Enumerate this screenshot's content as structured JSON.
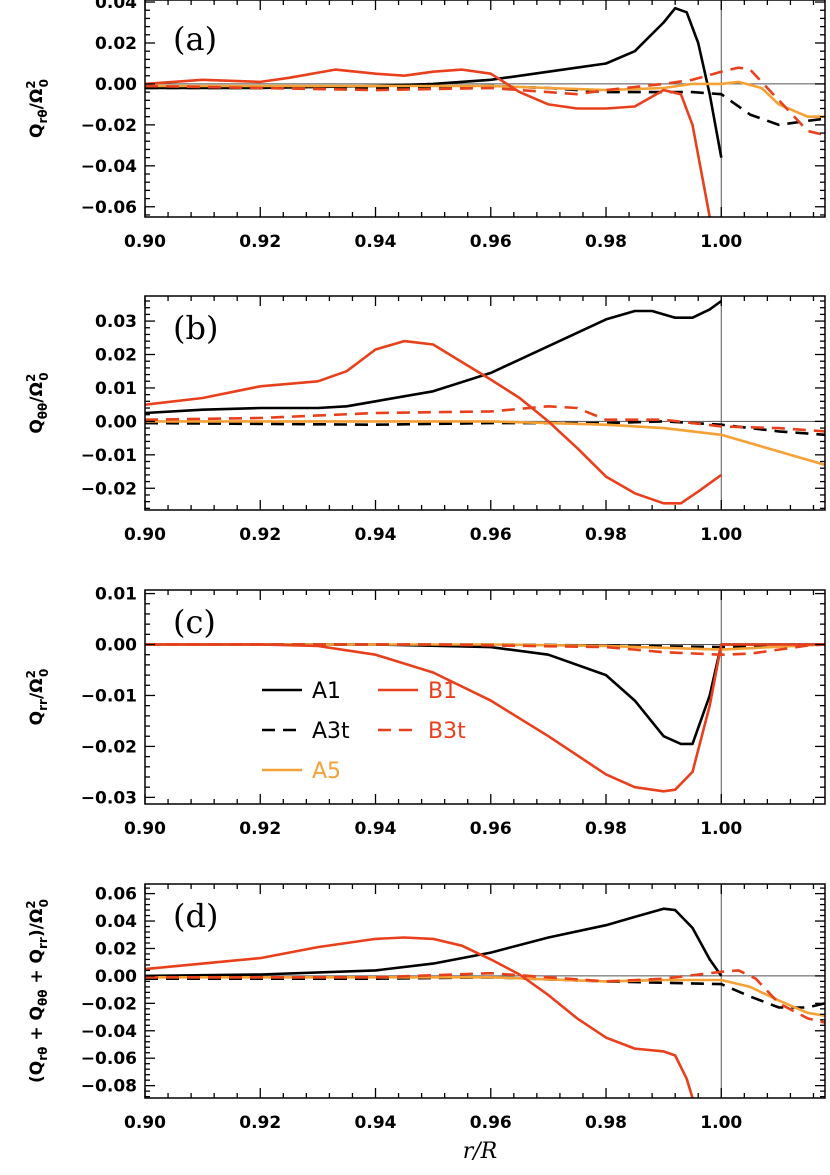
{
  "colors": {
    "A1": "#000000",
    "A3t": "#000000",
    "A5": "#f5a135",
    "B1": "#e8401c",
    "B3t": "#e8401c",
    "axis": "#000000",
    "refline": "#555555"
  },
  "chart_data": [
    {
      "type": "line",
      "panel_label": "(a)",
      "ylabel": "Q_rθ/Ω_0^2",
      "ylabel_parts": {
        "head": "Q",
        "sub": "rθ",
        "mid": "/Ω",
        "sub0": "0",
        "sup": "2"
      },
      "xlim": [
        0.9,
        1.018
      ],
      "ylim": [
        -0.065,
        0.041
      ],
      "xticks": [
        "0.90",
        "0.92",
        "0.94",
        "0.96",
        "0.98",
        "1.00"
      ],
      "yticks": [
        "0.04",
        "0.02",
        "0.00",
        "−0.02",
        "−0.04",
        "−0.06"
      ],
      "ytick_values": [
        0.04,
        0.02,
        0.0,
        -0.02,
        -0.04,
        -0.06
      ],
      "series": [
        {
          "name": "A1",
          "dash": "solid",
          "x": [
            0.9,
            0.92,
            0.94,
            0.95,
            0.96,
            0.97,
            0.98,
            0.985,
            0.99,
            0.992,
            0.994,
            0.996,
            0.998,
            1.0
          ],
          "y": [
            -0.002,
            -0.002,
            -0.001,
            0.0,
            0.002,
            0.006,
            0.01,
            0.016,
            0.03,
            0.037,
            0.035,
            0.02,
            -0.005,
            -0.036
          ]
        },
        {
          "name": "A3t",
          "dash": "dash",
          "x": [
            0.9,
            0.92,
            0.94,
            0.96,
            0.97,
            0.98,
            0.99,
            0.995,
            1.0,
            1.005,
            1.01,
            1.015,
            1.018
          ],
          "y": [
            -0.002,
            -0.002,
            -0.002,
            -0.001,
            -0.002,
            -0.004,
            -0.004,
            -0.004,
            -0.005,
            -0.015,
            -0.02,
            -0.018,
            -0.017
          ]
        },
        {
          "name": "A5",
          "dash": "solid",
          "x": [
            0.9,
            0.92,
            0.94,
            0.96,
            0.97,
            0.98,
            0.99,
            0.995,
            1.0,
            1.003,
            1.007,
            1.01,
            1.015,
            1.018
          ],
          "y": [
            -0.001,
            -0.001,
            -0.001,
            -0.001,
            -0.002,
            -0.003,
            -0.002,
            0.0,
            0.0,
            0.001,
            -0.002,
            -0.01,
            -0.016,
            -0.016
          ]
        },
        {
          "name": "B1",
          "dash": "solid",
          "x": [
            0.9,
            0.91,
            0.92,
            0.925,
            0.933,
            0.94,
            0.945,
            0.95,
            0.955,
            0.96,
            0.965,
            0.97,
            0.975,
            0.98,
            0.985,
            0.99,
            0.993,
            0.995,
            0.997,
            0.998
          ],
          "y": [
            0.0,
            0.002,
            0.001,
            0.003,
            0.007,
            0.005,
            0.004,
            0.006,
            0.007,
            0.005,
            -0.004,
            -0.01,
            -0.012,
            -0.012,
            -0.011,
            -0.003,
            -0.005,
            -0.02,
            -0.05,
            -0.065
          ]
        },
        {
          "name": "B3t",
          "dash": "dash",
          "x": [
            0.9,
            0.92,
            0.94,
            0.96,
            0.97,
            0.975,
            0.98,
            0.99,
            0.995,
            1.0,
            1.003,
            1.005,
            1.01,
            1.015,
            1.018
          ],
          "y": [
            -0.001,
            -0.002,
            -0.003,
            -0.002,
            -0.004,
            -0.005,
            -0.003,
            0.0,
            0.002,
            0.006,
            0.008,
            0.007,
            -0.008,
            -0.023,
            -0.025
          ]
        }
      ]
    },
    {
      "type": "line",
      "panel_label": "(b)",
      "ylabel": "Q_θθ/Ω_0^2",
      "ylabel_parts": {
        "head": "Q",
        "sub": "θθ",
        "mid": "/Ω",
        "sub0": "0",
        "sup": "2"
      },
      "xlim": [
        0.9,
        1.018
      ],
      "ylim": [
        -0.0265,
        0.0375
      ],
      "xticks": [
        "0.90",
        "0.92",
        "0.94",
        "0.96",
        "0.98",
        "1.00"
      ],
      "yticks": [
        "0.03",
        "0.02",
        "0.01",
        "0.00",
        "−0.01",
        "−0.02"
      ],
      "ytick_values": [
        0.03,
        0.02,
        0.01,
        0.0,
        -0.01,
        -0.02
      ],
      "series": [
        {
          "name": "A1",
          "dash": "solid",
          "x": [
            0.9,
            0.91,
            0.92,
            0.93,
            0.935,
            0.94,
            0.95,
            0.96,
            0.97,
            0.98,
            0.985,
            0.988,
            0.992,
            0.995,
            0.998,
            1.0
          ],
          "y": [
            0.0025,
            0.0035,
            0.004,
            0.004,
            0.0045,
            0.006,
            0.009,
            0.0145,
            0.0225,
            0.0305,
            0.033,
            0.033,
            0.031,
            0.031,
            0.0335,
            0.036
          ]
        },
        {
          "name": "A3t",
          "dash": "dash",
          "x": [
            0.9,
            0.94,
            0.96,
            0.98,
            0.99,
            1.0,
            1.01,
            1.018
          ],
          "y": [
            -0.0005,
            -0.001,
            -0.0005,
            -0.0005,
            0.0,
            -0.001,
            -0.003,
            -0.004
          ]
        },
        {
          "name": "A5",
          "dash": "solid",
          "x": [
            0.9,
            0.94,
            0.96,
            0.98,
            0.99,
            1.0,
            1.01,
            1.018
          ],
          "y": [
            0.0,
            0.0,
            0.0,
            -0.001,
            -0.002,
            -0.004,
            -0.009,
            -0.013
          ]
        },
        {
          "name": "B1",
          "dash": "solid",
          "x": [
            0.9,
            0.91,
            0.92,
            0.93,
            0.935,
            0.94,
            0.945,
            0.95,
            0.96,
            0.965,
            0.97,
            0.975,
            0.98,
            0.985,
            0.99,
            0.993,
            0.996,
            1.0
          ],
          "y": [
            0.005,
            0.007,
            0.0105,
            0.012,
            0.015,
            0.0215,
            0.024,
            0.023,
            0.0125,
            0.007,
            0.0,
            -0.008,
            -0.0165,
            -0.0215,
            -0.0245,
            -0.0245,
            -0.021,
            -0.016
          ]
        },
        {
          "name": "B3t",
          "dash": "dash",
          "x": [
            0.9,
            0.92,
            0.94,
            0.96,
            0.97,
            0.975,
            0.98,
            0.99,
            1.0,
            1.01,
            1.018
          ],
          "y": [
            0.0005,
            0.001,
            0.0025,
            0.003,
            0.0045,
            0.004,
            0.0005,
            0.0005,
            -0.0015,
            -0.002,
            -0.003
          ]
        }
      ]
    },
    {
      "type": "line",
      "panel_label": "(c)",
      "ylabel": "Q_rr/Ω_0^2",
      "ylabel_parts": {
        "head": "Q",
        "sub": "rr",
        "mid": "/Ω",
        "sub0": "0",
        "sup": "2"
      },
      "xlim": [
        0.9,
        1.018
      ],
      "ylim": [
        -0.0313,
        0.0107
      ],
      "xticks": [
        "0.90",
        "0.92",
        "0.94",
        "0.96",
        "0.98",
        "1.00"
      ],
      "yticks": [
        "0.01",
        "0.00",
        "−0.01",
        "−0.02",
        "−0.03"
      ],
      "ytick_values": [
        0.01,
        0.0,
        -0.01,
        -0.02,
        -0.03
      ],
      "series": [
        {
          "name": "A1",
          "dash": "solid",
          "x": [
            0.9,
            0.94,
            0.96,
            0.97,
            0.98,
            0.985,
            0.99,
            0.993,
            0.995,
            0.998,
            1.0,
            1.018
          ],
          "y": [
            0.0,
            0.0,
            -0.0005,
            -0.002,
            -0.006,
            -0.011,
            -0.018,
            -0.0195,
            -0.0195,
            -0.01,
            0.0,
            0.0
          ]
        },
        {
          "name": "A3t",
          "dash": "dash",
          "x": [
            0.9,
            0.96,
            0.98,
            1.0,
            1.018
          ],
          "y": [
            0.0,
            0.0,
            -0.0002,
            -0.0005,
            0.0
          ]
        },
        {
          "name": "A5",
          "dash": "solid",
          "x": [
            0.9,
            0.96,
            0.98,
            1.0,
            1.018
          ],
          "y": [
            0.0,
            0.0,
            -0.0003,
            -0.001,
            0.0
          ]
        },
        {
          "name": "B1",
          "dash": "solid",
          "x": [
            0.9,
            0.92,
            0.93,
            0.94,
            0.95,
            0.96,
            0.97,
            0.98,
            0.985,
            0.99,
            0.992,
            0.995,
            0.998,
            1.0,
            1.018
          ],
          "y": [
            0.0,
            0.0,
            -0.0003,
            -0.002,
            -0.0055,
            -0.011,
            -0.018,
            -0.0255,
            -0.028,
            -0.0288,
            -0.0285,
            -0.025,
            -0.012,
            0.0,
            0.0
          ]
        },
        {
          "name": "B3t",
          "dash": "dash",
          "x": [
            0.9,
            0.95,
            0.98,
            0.99,
            1.0,
            1.005,
            1.01,
            1.015,
            1.018
          ],
          "y": [
            0.0,
            0.0,
            -0.0005,
            -0.0015,
            -0.002,
            -0.0018,
            -0.001,
            -0.0002,
            0.0
          ]
        }
      ],
      "legend": {
        "position": "center-left",
        "entries": [
          "A1",
          "B1",
          "A3t",
          "B3t",
          "A5"
        ]
      }
    },
    {
      "type": "line",
      "panel_label": "(d)",
      "ylabel": "(Q_rθ + Q_θθ + Q_rr)/Ω_0^2",
      "ylabel_parts": {
        "head": "(Q",
        "s1": "rθ",
        "m1": " + Q",
        "s2": "θθ",
        "m2": " + Q",
        "s3": "rr",
        "m3": ")/Ω",
        "sub0": "0",
        "sup": "2"
      },
      "xlim": [
        0.9,
        1.018
      ],
      "ylim": [
        -0.089,
        0.067
      ],
      "xticks": [
        "0.90",
        "0.92",
        "0.94",
        "0.96",
        "0.98",
        "1.00"
      ],
      "yticks": [
        "0.06",
        "0.04",
        "0.02",
        "0.00",
        "−0.02",
        "−0.04",
        "−0.06",
        "−0.08"
      ],
      "ytick_values": [
        0.06,
        0.04,
        0.02,
        0.0,
        -0.02,
        -0.04,
        -0.06,
        -0.08
      ],
      "xlabel": "r/R",
      "series": [
        {
          "name": "A1",
          "dash": "solid",
          "x": [
            0.9,
            0.92,
            0.94,
            0.95,
            0.96,
            0.97,
            0.98,
            0.985,
            0.99,
            0.992,
            0.995,
            0.998,
            1.0
          ],
          "y": [
            0.0,
            0.001,
            0.004,
            0.009,
            0.017,
            0.028,
            0.037,
            0.043,
            0.049,
            0.048,
            0.035,
            0.012,
            0.0
          ]
        },
        {
          "name": "A3t",
          "dash": "dash",
          "x": [
            0.9,
            0.94,
            0.96,
            0.98,
            0.99,
            1.0,
            1.005,
            1.01,
            1.015,
            1.018
          ],
          "y": [
            -0.002,
            -0.002,
            -0.001,
            -0.004,
            -0.005,
            -0.006,
            -0.015,
            -0.023,
            -0.023,
            -0.02
          ]
        },
        {
          "name": "A5",
          "dash": "solid",
          "x": [
            0.9,
            0.94,
            0.96,
            0.98,
            0.99,
            1.0,
            1.005,
            1.01,
            1.015,
            1.018
          ],
          "y": [
            -0.001,
            -0.001,
            -0.001,
            -0.004,
            -0.003,
            -0.003,
            -0.008,
            -0.018,
            -0.027,
            -0.029
          ]
        },
        {
          "name": "B1",
          "dash": "solid",
          "x": [
            0.9,
            0.91,
            0.92,
            0.93,
            0.94,
            0.945,
            0.95,
            0.955,
            0.96,
            0.965,
            0.97,
            0.975,
            0.98,
            0.985,
            0.99,
            0.992,
            0.994,
            0.995
          ],
          "y": [
            0.005,
            0.009,
            0.013,
            0.021,
            0.027,
            0.028,
            0.027,
            0.022,
            0.012,
            0.001,
            -0.014,
            -0.031,
            -0.045,
            -0.053,
            -0.055,
            -0.058,
            -0.075,
            -0.089
          ]
        },
        {
          "name": "B3t",
          "dash": "dash",
          "x": [
            0.9,
            0.94,
            0.96,
            0.97,
            0.98,
            0.99,
            1.0,
            1.003,
            1.006,
            1.01,
            1.015,
            1.018
          ],
          "y": [
            -0.001,
            -0.001,
            0.002,
            -0.001,
            -0.004,
            -0.002,
            0.003,
            0.004,
            -0.002,
            -0.02,
            -0.031,
            -0.034
          ]
        }
      ]
    }
  ]
}
